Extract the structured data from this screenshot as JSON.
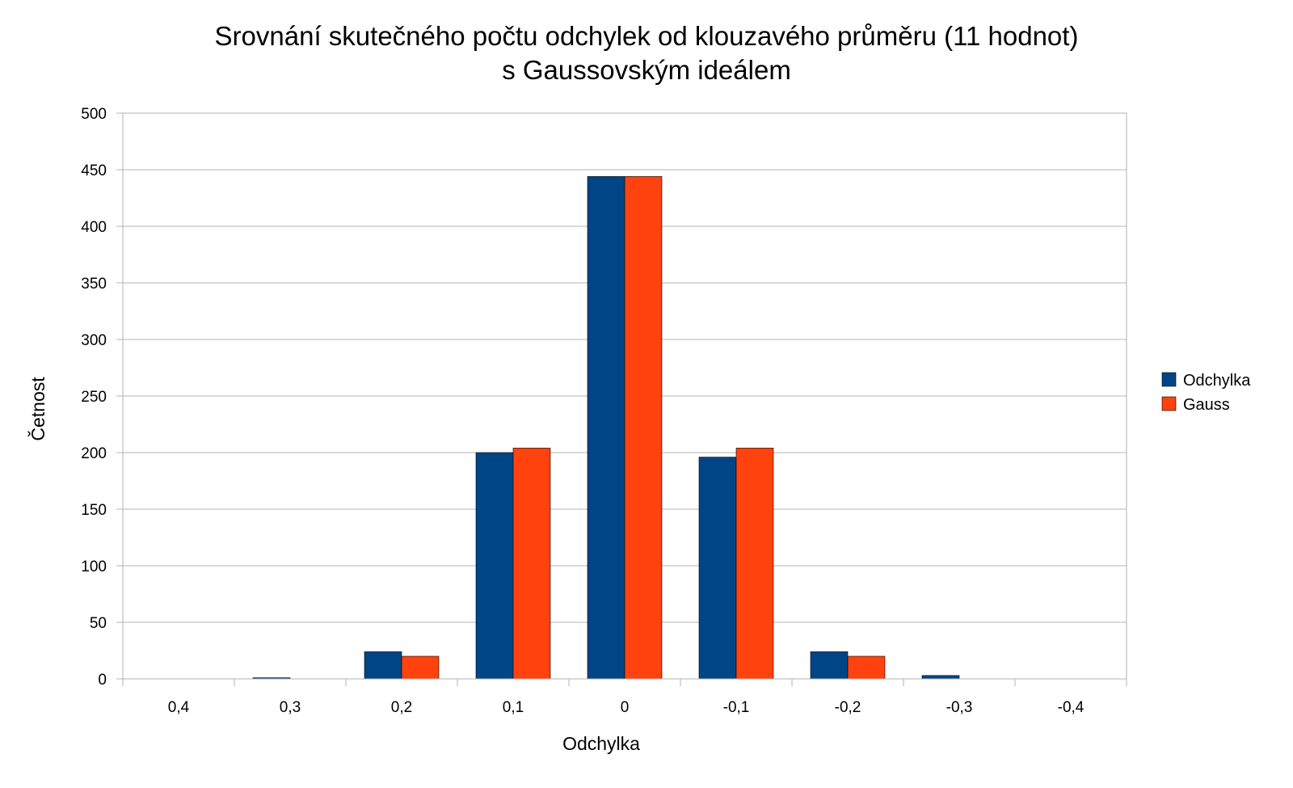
{
  "chart_data": {
    "type": "bar",
    "title": "Srovnání skutečného počtu odchylek od klouzavého průměru (11 hodnot)",
    "subtitle": "s Gaussovským ideálem",
    "xlabel": "Odchylka",
    "ylabel": "Četnost",
    "categories": [
      "0,4",
      "0,3",
      "0,2",
      "0,1",
      "0",
      "-0,1",
      "-0,2",
      "-0,3",
      "-0,4"
    ],
    "series": [
      {
        "name": "Odchylka",
        "color": "#004586",
        "values": [
          0,
          1,
          24,
          200,
          444,
          196,
          24,
          3,
          0
        ]
      },
      {
        "name": "Gauss",
        "color": "#ff420e",
        "values": [
          0,
          0,
          20,
          204,
          444,
          204,
          20,
          0,
          0
        ]
      }
    ],
    "ylim": [
      0,
      500
    ],
    "yticks": [
      "0",
      "50",
      "100",
      "150",
      "200",
      "250",
      "300",
      "350",
      "400",
      "450",
      "500"
    ],
    "ytick_values": [
      0,
      50,
      100,
      150,
      200,
      250,
      300,
      350,
      400,
      450,
      500
    ],
    "grid": true,
    "legend_position": "right"
  }
}
